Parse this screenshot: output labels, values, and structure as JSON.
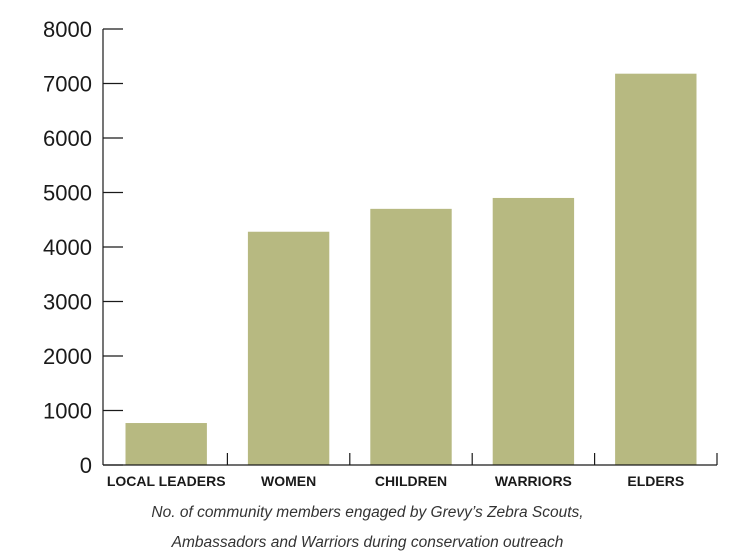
{
  "chart_data": {
    "type": "bar",
    "categories": [
      "LOCAL LEADERS",
      "WOMEN",
      "CHILDREN",
      "WARRIORS",
      "ELDERS"
    ],
    "values": [
      770,
      4280,
      4700,
      4900,
      7180
    ],
    "ylim": [
      0,
      8000
    ],
    "yticks": [
      0,
      1000,
      2000,
      3000,
      4000,
      5000,
      6000,
      7000,
      8000
    ],
    "bar_color": "#b7b981",
    "axis_color": "#1a1a1a",
    "grid": false,
    "caption": [
      "No. of community members engaged by Grevy’s Zebra Scouts,",
      "Ambassadors and Warriors during conservation outreach"
    ]
  }
}
